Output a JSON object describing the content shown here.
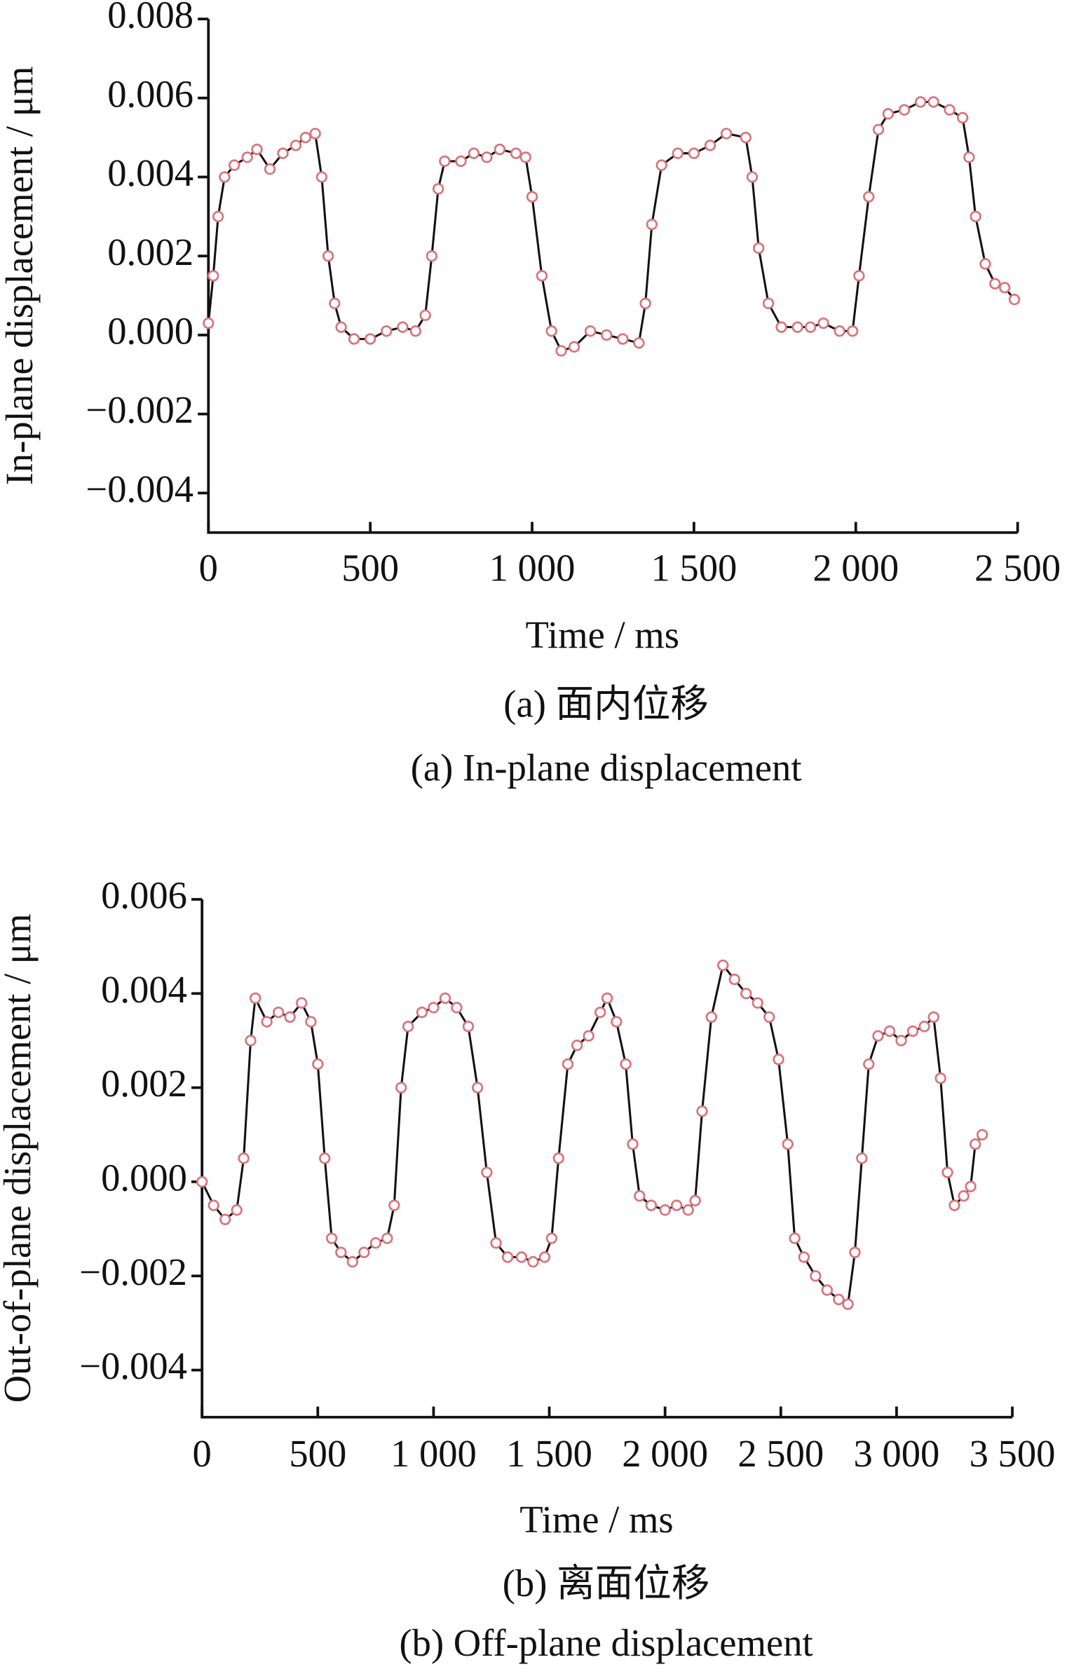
{
  "chart_data": [
    {
      "type": "line",
      "xlabel": "Time / ms",
      "ylabel": "In-plane displacement / μm",
      "captions": [
        "(a) 面内位移",
        "(a) In-plane displacement"
      ],
      "line_color": "#111111",
      "color": "#d9737d",
      "xlim": [
        0,
        2500
      ],
      "xticks": [
        0,
        500,
        {
          "value": 1000,
          "label": "1 000"
        },
        {
          "value": 1500,
          "label": "1 500"
        },
        {
          "value": 2000,
          "label": "2 000"
        },
        {
          "value": 2500,
          "label": "2 500"
        }
      ],
      "ylim": [
        -0.005,
        0.008
      ],
      "yticks": [
        {
          "value": -0.004,
          "label": "−0.004"
        },
        {
          "value": -0.002,
          "label": "−0.002"
        },
        {
          "value": 0,
          "label": "0.000"
        },
        0.002,
        0.004,
        0.006,
        0.008
      ],
      "x": [
        0,
        15,
        30,
        50,
        80,
        120,
        150,
        190,
        230,
        270,
        300,
        330,
        350,
        370,
        390,
        410,
        450,
        500,
        550,
        600,
        640,
        670,
        690,
        710,
        730,
        780,
        820,
        860,
        900,
        950,
        980,
        1000,
        1030,
        1060,
        1090,
        1130,
        1180,
        1230,
        1280,
        1330,
        1350,
        1370,
        1400,
        1450,
        1500,
        1550,
        1600,
        1660,
        1680,
        1700,
        1730,
        1770,
        1820,
        1860,
        1900,
        1950,
        1990,
        2010,
        2040,
        2070,
        2100,
        2150,
        2200,
        2240,
        2290,
        2330,
        2350,
        2370,
        2400,
        2430,
        2460,
        2490
      ],
      "values": [
        0.0003,
        0.0015,
        0.003,
        0.004,
        0.0043,
        0.0045,
        0.0047,
        0.0042,
        0.0046,
        0.0048,
        0.005,
        0.0051,
        0.004,
        0.002,
        0.0008,
        0.0002,
        -0.0001,
        -0.0001,
        0.0001,
        0.0002,
        0.0001,
        0.0005,
        0.002,
        0.0037,
        0.0044,
        0.0044,
        0.0046,
        0.0045,
        0.0047,
        0.0046,
        0.0045,
        0.0035,
        0.0015,
        0.0001,
        -0.0004,
        -0.0003,
        0.0001,
        0,
        -0.0001,
        -0.0002,
        0.0008,
        0.0028,
        0.0043,
        0.0046,
        0.0046,
        0.0048,
        0.0051,
        0.005,
        0.004,
        0.0022,
        0.0008,
        0.0002,
        0.0002,
        0.0002,
        0.0003,
        0.0001,
        0.0001,
        0.0015,
        0.0035,
        0.0052,
        0.0056,
        0.0057,
        0.0059,
        0.0059,
        0.0057,
        0.0055,
        0.0045,
        0.003,
        0.0018,
        0.0013,
        0.0012,
        0.0009
      ]
    },
    {
      "type": "line",
      "xlabel": "Time / ms",
      "ylabel": "Out-of-plane displacement / μm",
      "captions": [
        "(b) 离面位移",
        "(b) Off-plane displacement"
      ],
      "line_color": "#111111",
      "color": "#d9737d",
      "xlim": [
        0,
        3500
      ],
      "xticks": [
        0,
        500,
        {
          "value": 1000,
          "label": "1 000"
        },
        {
          "value": 1500,
          "label": "1 500"
        },
        {
          "value": 2000,
          "label": "2 000"
        },
        {
          "value": 2500,
          "label": "2 500"
        },
        {
          "value": 3000,
          "label": "3 000"
        },
        {
          "value": 3500,
          "label": "3 500"
        }
      ],
      "ylim": [
        -0.005,
        0.006
      ],
      "yticks": [
        {
          "value": -0.004,
          "label": "−0.004"
        },
        {
          "value": -0.002,
          "label": "−0.002"
        },
        {
          "value": 0,
          "label": "0.000"
        },
        0.002,
        0.004,
        0.006
      ],
      "x": [
        0,
        50,
        100,
        150,
        180,
        210,
        230,
        280,
        330,
        380,
        430,
        470,
        500,
        530,
        560,
        600,
        650,
        700,
        750,
        800,
        830,
        860,
        890,
        950,
        1000,
        1050,
        1100,
        1150,
        1190,
        1230,
        1270,
        1320,
        1380,
        1430,
        1480,
        1510,
        1540,
        1580,
        1620,
        1670,
        1720,
        1750,
        1790,
        1830,
        1860,
        1890,
        1940,
        2000,
        2050,
        2100,
        2130,
        2160,
        2200,
        2250,
        2300,
        2350,
        2400,
        2450,
        2490,
        2530,
        2560,
        2600,
        2650,
        2700,
        2750,
        2790,
        2820,
        2850,
        2880,
        2920,
        2970,
        3020,
        3070,
        3120,
        3160,
        3190,
        3220,
        3250,
        3290,
        3320,
        3340,
        3370
      ],
      "values": [
        0,
        -0.0005,
        -0.0008,
        -0.0006,
        0.0005,
        0.003,
        0.0039,
        0.0034,
        0.0036,
        0.0035,
        0.0038,
        0.0034,
        0.0025,
        0.0005,
        -0.0012,
        -0.0015,
        -0.0017,
        -0.0015,
        -0.0013,
        -0.0012,
        -0.0005,
        0.002,
        0.0033,
        0.0036,
        0.0037,
        0.0039,
        0.0037,
        0.0033,
        0.002,
        0.0002,
        -0.0013,
        -0.0016,
        -0.0016,
        -0.0017,
        -0.0016,
        -0.0012,
        0.0005,
        0.0025,
        0.0029,
        0.0031,
        0.0036,
        0.0039,
        0.0034,
        0.0025,
        0.0008,
        -0.0003,
        -0.0005,
        -0.0006,
        -0.0005,
        -0.0006,
        -0.0004,
        0.0015,
        0.0035,
        0.0046,
        0.0043,
        0.004,
        0.0038,
        0.0035,
        0.0026,
        0.0008,
        -0.0012,
        -0.0016,
        -0.002,
        -0.0023,
        -0.0025,
        -0.0026,
        -0.0015,
        0.0005,
        0.0025,
        0.0031,
        0.0032,
        0.003,
        0.0032,
        0.0033,
        0.0035,
        0.0022,
        0.0002,
        -0.0005,
        -0.0003,
        -0.0001,
        0.0008,
        0.001
      ]
    }
  ]
}
